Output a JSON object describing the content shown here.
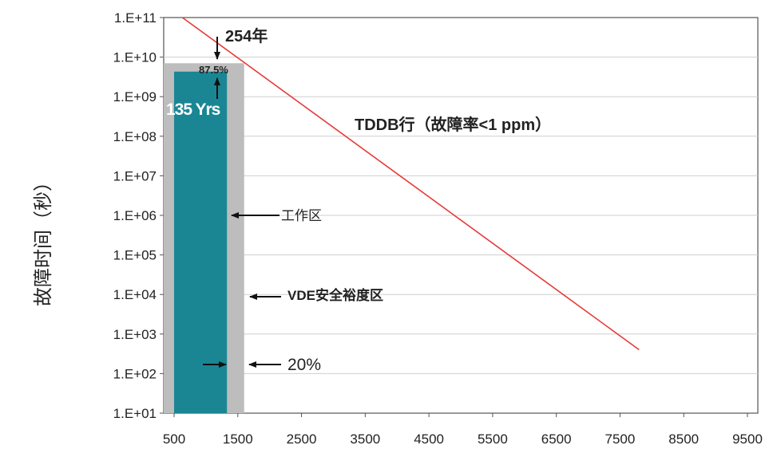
{
  "chart_data": {
    "type": "bar",
    "ylabel": "故障时间（秒）",
    "xlabel": "",
    "yscale": "log",
    "ylim": [
      10,
      100000000000
    ],
    "xlim": [
      500,
      9500
    ],
    "y_ticks": [
      "1.E+01",
      "1.E+02",
      "1.E+03",
      "1.E+04",
      "1.E+05",
      "1.E+06",
      "1.E+07",
      "1.E+08",
      "1.E+09",
      "1.E+10",
      "1.E+11"
    ],
    "x_ticks": [
      "500",
      "1500",
      "2500",
      "3500",
      "4500",
      "5500",
      "6500",
      "7500",
      "8500",
      "9500"
    ],
    "grid": true,
    "bars": [
      {
        "label": "工作区",
        "x_from": 500,
        "x_to": 1330,
        "value": 4300000000,
        "color": "#1a8694",
        "text": "135 Yrs"
      },
      {
        "label": "VDE安全裕度区",
        "x_from": 1330,
        "x_to": 1600,
        "value": 7000000000,
        "color": "#bdbdbd"
      }
    ],
    "line": {
      "label": "TDDB行（故障率<1 ppm）",
      "color": "#e83a3a",
      "points": [
        [
          630,
          100000000000
        ],
        [
          7800,
          400
        ]
      ]
    },
    "annotations": {
      "top_arrow": "254年",
      "percent_top": "87.5%",
      "bar_text": "135 Yrs",
      "line_label": "TDDB行（故障率<1 ppm）",
      "work_zone": "工作区",
      "margin_zone": "VDE安全裕度区",
      "percent_bottom": "20%"
    }
  }
}
